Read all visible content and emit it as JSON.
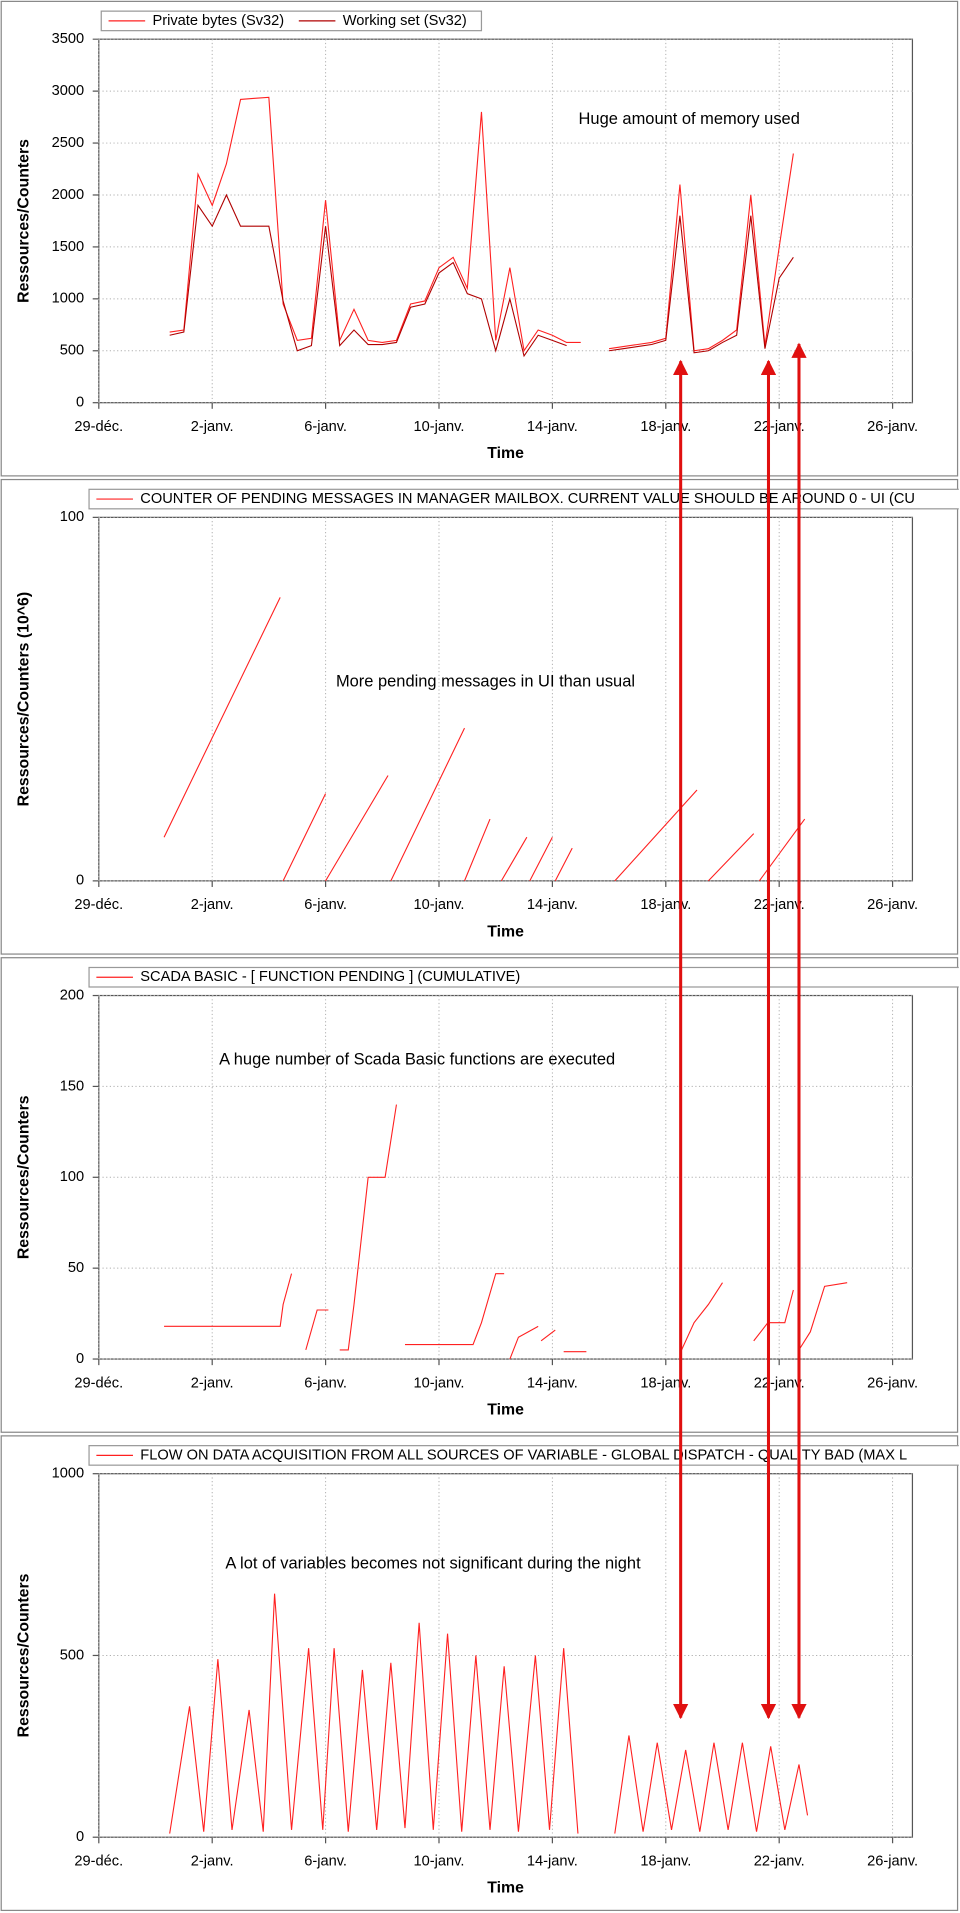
{
  "chart_data": [
    {
      "type": "line",
      "y_label": "Ressources/Counters",
      "x_label": "Time",
      "annotation": "Huge amount of memory used",
      "x": [
        2.5,
        3,
        3.5,
        4,
        4.5,
        5,
        5.5,
        6,
        6.5,
        7,
        7.5,
        8,
        8.5,
        9,
        9.5,
        10,
        10.5,
        11,
        11.5,
        12,
        12.5,
        13,
        13.5,
        14,
        14.5,
        15,
        15.5,
        16,
        16.5,
        17,
        17.5,
        18,
        18.5,
        19,
        19.5,
        20,
        20.5,
        21,
        21.5,
        22,
        22.5,
        23,
        23.5,
        24,
        24.5
      ],
      "series": [
        {
          "name": "Private bytes (Sv32)",
          "color": "#ff2020",
          "values": [
            680,
            700,
            2200,
            1900,
            2300,
            2920,
            2930,
            2940,
            950,
            600,
            620,
            1950,
            600,
            900,
            600,
            580,
            600,
            950,
            980,
            1300,
            1400,
            1100,
            2800,
            600,
            1300,
            500,
            700,
            650,
            580,
            580,
            null,
            520,
            540,
            560,
            580,
            620,
            2100,
            500,
            520,
            600,
            700,
            2000,
            550,
            1500,
            2400
          ]
        },
        {
          "name": "Working set (Sv32)",
          "color": "#b00000",
          "values": [
            650,
            680,
            1900,
            1700,
            2000,
            1700,
            1700,
            1700,
            980,
            500,
            550,
            1700,
            550,
            700,
            560,
            560,
            580,
            920,
            950,
            1250,
            1350,
            1050,
            1000,
            500,
            1000,
            450,
            650,
            600,
            550,
            null,
            null,
            500,
            520,
            540,
            560,
            600,
            1800,
            480,
            500,
            580,
            650,
            1800,
            520,
            1200,
            1400
          ]
        }
      ],
      "xlim": [
        0,
        28.7
      ],
      "xticks": [
        {
          "value": 0,
          "label": "29-déc."
        },
        {
          "value": 4,
          "label": "2-janv."
        },
        {
          "value": 8,
          "label": "6-janv."
        },
        {
          "value": 12,
          "label": "10-janv."
        },
        {
          "value": 16,
          "label": "14-janv."
        },
        {
          "value": 20,
          "label": "18-janv."
        },
        {
          "value": 24,
          "label": "22-janv."
        },
        {
          "value": 28,
          "label": "26-janv."
        }
      ],
      "ylim": [
        0,
        3500
      ],
      "yticks": [
        0,
        500,
        1000,
        1500,
        2000,
        2500,
        3000,
        3500
      ],
      "grid": true
    },
    {
      "type": "line",
      "y_label": "Ressources/Counters (10^6)",
      "x_label": "Time",
      "annotation": "More pending messages in UI than usual",
      "x": [
        2.3,
        6.4,
        6.4,
        6.5,
        8.0,
        8.0,
        8.0,
        10.2,
        10.2,
        10.3,
        12.9,
        12.9,
        12.9,
        13.8,
        13.8,
        14.2,
        15.1,
        15.1,
        15.2,
        16.0,
        16.0,
        16.1,
        16.7,
        16.7,
        18.2,
        21.1,
        21.1,
        21.5,
        23.1,
        23.1,
        23.3,
        24.9
      ],
      "series": [
        {
          "name": "COUNTER OF PENDING MESSAGES IN MANAGER MAILBOX. CURRENT VALUE SHOULD BE AROUND 0 - UI (CU",
          "color": "#ff2020",
          "values": [
            12,
            78,
            null,
            0,
            24,
            null,
            0,
            29,
            null,
            0,
            42,
            null,
            0,
            17,
            null,
            0,
            12,
            null,
            0,
            12,
            null,
            0,
            9,
            null,
            0,
            25,
            null,
            0,
            13,
            null,
            0,
            17
          ]
        }
      ],
      "xlim": [
        0,
        28.7
      ],
      "xticks": [
        {
          "value": 0,
          "label": "29-déc."
        },
        {
          "value": 4,
          "label": "2-janv."
        },
        {
          "value": 8,
          "label": "6-janv."
        },
        {
          "value": 12,
          "label": "10-janv."
        },
        {
          "value": 16,
          "label": "14-janv."
        },
        {
          "value": 20,
          "label": "18-janv."
        },
        {
          "value": 24,
          "label": "22-janv."
        },
        {
          "value": 28,
          "label": "26-janv."
        }
      ],
      "ylim": [
        0,
        100
      ],
      "yticks": [
        0,
        100
      ],
      "grid": true
    },
    {
      "type": "line",
      "y_label": "Ressources/Counters",
      "x_label": "Time",
      "annotation": "A huge number of Scada Basic functions are executed",
      "x": [
        2.3,
        6.4,
        6.5,
        6.8,
        6.8,
        7.3,
        7.7,
        8.1,
        8.1,
        8.5,
        8.8,
        9.0,
        9.5,
        10.1,
        10.5,
        10.5,
        10.8,
        13.2,
        13.5,
        14.0,
        14.3,
        14.3,
        14.5,
        14.8,
        15.5,
        15.5,
        15.6,
        16.1,
        16.1,
        16.4,
        17.2,
        17.2,
        20.5,
        21.0,
        21.5,
        22.0,
        22.0,
        23.1,
        23.6,
        24.2,
        24.5,
        24.5,
        24.7,
        25.1,
        25.6,
        26.4
      ],
      "series": [
        {
          "name": "SCADA BASIC - [ FUNCTION PENDING ] (CUMULATIVE)",
          "color": "#ff2020",
          "values": [
            18,
            18,
            30,
            47,
            null,
            5,
            27,
            27,
            null,
            5,
            5,
            30,
            100,
            100,
            140,
            null,
            8,
            8,
            20,
            47,
            47,
            null,
            0,
            12,
            18,
            null,
            10,
            16,
            null,
            4,
            4,
            null,
            3,
            20,
            30,
            42,
            null,
            10,
            20,
            20,
            38,
            null,
            5,
            15,
            40,
            42
          ]
        }
      ],
      "xlim": [
        0,
        28.7
      ],
      "xticks": [
        {
          "value": 0,
          "label": "29-déc."
        },
        {
          "value": 4,
          "label": "2-janv."
        },
        {
          "value": 8,
          "label": "6-janv."
        },
        {
          "value": 12,
          "label": "10-janv."
        },
        {
          "value": 16,
          "label": "14-janv."
        },
        {
          "value": 20,
          "label": "18-janv."
        },
        {
          "value": 24,
          "label": "22-janv."
        },
        {
          "value": 28,
          "label": "26-janv."
        }
      ],
      "ylim": [
        0,
        200
      ],
      "yticks": [
        0,
        50,
        100,
        150,
        200
      ],
      "grid": true
    },
    {
      "type": "line",
      "y_label": "Ressources/Counters",
      "x_label": "Time",
      "annotation": "A lot of variables becomes not significant during the night",
      "x": [
        2.5,
        3.2,
        3.7,
        4.2,
        4.7,
        5.3,
        5.8,
        6.2,
        6.8,
        7.4,
        7.9,
        8.3,
        8.8,
        9.3,
        9.8,
        10.3,
        10.8,
        11.3,
        11.8,
        12.3,
        12.8,
        13.3,
        13.8,
        14.3,
        14.8,
        15.4,
        15.9,
        16.4,
        16.9,
        17.5,
        18.2,
        18.7,
        19.2,
        19.7,
        20.2,
        20.7,
        21.2,
        21.7,
        22.2,
        22.7,
        23.2,
        23.7,
        24.2,
        24.7,
        25.0
      ],
      "series": [
        {
          "name": "FLOW ON DATA ACQUISITION FROM ALL SOURCES OF VARIABLE - GLOBAL DISPATCH - QUALITY BAD (MAX L",
          "color": "#ff2020",
          "values": [
            10,
            360,
            15,
            490,
            20,
            350,
            15,
            670,
            20,
            520,
            20,
            520,
            15,
            460,
            20,
            480,
            25,
            590,
            20,
            560,
            15,
            500,
            20,
            470,
            15,
            500,
            20,
            520,
            10,
            null,
            10,
            280,
            15,
            260,
            20,
            240,
            15,
            260,
            20,
            260,
            15,
            250,
            20,
            200,
            60
          ]
        }
      ],
      "xlim": [
        0,
        28.7
      ],
      "xticks": [
        {
          "value": 0,
          "label": "29-déc."
        },
        {
          "value": 4,
          "label": "2-janv."
        },
        {
          "value": 8,
          "label": "6-janv."
        },
        {
          "value": 12,
          "label": "10-janv."
        },
        {
          "value": 16,
          "label": "14-janv."
        },
        {
          "value": 20,
          "label": "18-janv."
        },
        {
          "value": 24,
          "label": "22-janv."
        },
        {
          "value": 28,
          "label": "26-janv."
        }
      ],
      "ylim": [
        0,
        1000
      ],
      "yticks": [
        0,
        500,
        1000
      ],
      "grid": true
    }
  ]
}
